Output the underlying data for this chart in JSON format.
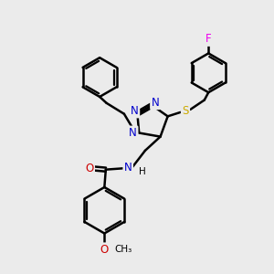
{
  "background_color": "#ebebeb",
  "atom_colors": {
    "C": "#000000",
    "N": "#0000cc",
    "O": "#cc0000",
    "S": "#ccaa00",
    "F": "#ee00ee",
    "H": "#000000"
  },
  "bond_color": "#000000",
  "bond_width": 1.8,
  "font_size": 8.5,
  "figsize": [
    3.0,
    3.0
  ],
  "dpi": 100
}
